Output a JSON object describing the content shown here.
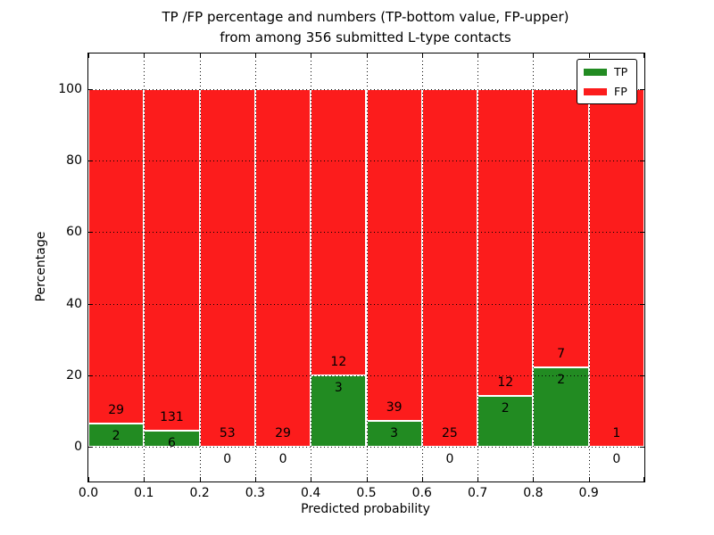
{
  "title": {
    "line1": "TP /FP percentage and numbers (TP-bottom value, FP-upper)",
    "line2": "from among 356 submitted L-type contacts"
  },
  "chart_data": {
    "type": "bar",
    "stacked": true,
    "title": "TP /FP percentage and numbers (TP-bottom value, FP-upper) from among 356 submitted L-type contacts",
    "xlabel": "Predicted probability",
    "ylabel": "Percentage",
    "total_contacts": 356,
    "x_bin_edges": [
      0.0,
      0.1,
      0.2,
      0.3,
      0.4,
      0.5,
      0.6,
      0.7,
      0.8,
      0.9,
      1.0
    ],
    "x_tick_labels": [
      "0.0",
      "0.1",
      "0.2",
      "0.3",
      "0.4",
      "0.5",
      "0.6",
      "0.7",
      "0.8",
      "0.9"
    ],
    "y_ticks": [
      0,
      20,
      40,
      60,
      80,
      100
    ],
    "ylim": [
      -9.7,
      110.2
    ],
    "grid": true,
    "grid_style": "dotted",
    "legend_position": "upper right",
    "series": [
      {
        "name": "TP",
        "color": "#228b22",
        "counts": [
          2,
          6,
          0,
          0,
          3,
          3,
          0,
          2,
          2,
          0
        ]
      },
      {
        "name": "FP",
        "color": "#fc1c1c",
        "counts": [
          29,
          131,
          53,
          29,
          12,
          39,
          25,
          12,
          7,
          1
        ]
      }
    ],
    "tp_percentages": [
      6.5,
      4.4,
      0.0,
      0.0,
      20.0,
      7.1,
      0.0,
      14.3,
      22.2,
      0.0
    ],
    "bars_note": "green TP segment from 0 to TP/(TP+FP)*100, red FP segment fills up to 100"
  },
  "colors": {
    "tp_green": "#228b22",
    "fp_red": "#fc1c1c",
    "background": "#ffffff",
    "grid": "#000000"
  }
}
